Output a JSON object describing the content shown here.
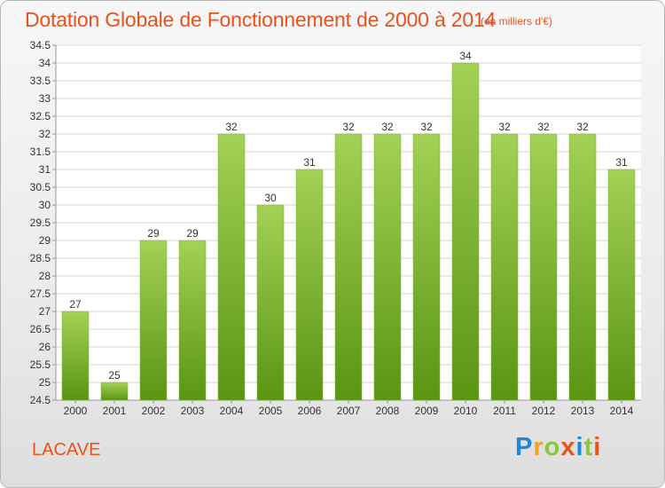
{
  "title": "Dotation Globale de Fonctionnement de 2000 à 2014",
  "unit_note": "(en milliers d'€)",
  "commune": "LACAVE",
  "brand": {
    "letters": [
      "P",
      "r",
      "o",
      "x",
      "i",
      "t",
      "i"
    ],
    "colors": [
      "#1e88d8",
      "#f2a51c",
      "#8cc63f",
      "#e8531d",
      "#1e88d8",
      "#8cc63f",
      "#e8531d"
    ]
  },
  "colors": {
    "title": "#e8531d",
    "bar_top": "#a3d155",
    "bar_bottom": "#5a9512",
    "grid": "#d6d6d6",
    "axis": "#999999"
  },
  "chart_data": {
    "type": "bar",
    "categories": [
      "2000",
      "2001",
      "2002",
      "2003",
      "2004",
      "2005",
      "2006",
      "2007",
      "2008",
      "2009",
      "2010",
      "2011",
      "2012",
      "2013",
      "2014"
    ],
    "values": [
      27,
      25,
      29,
      29,
      32,
      30,
      31,
      32,
      32,
      32,
      34,
      32,
      32,
      32,
      31
    ],
    "data_labels": [
      "27",
      "25",
      "29",
      "29",
      "32",
      "30",
      "31",
      "32",
      "32",
      "32",
      "34",
      "32",
      "32",
      "32",
      "31"
    ],
    "ylim": [
      24.5,
      34.5
    ],
    "yticks": [
      24.5,
      25,
      25.5,
      26,
      26.5,
      27,
      27.5,
      28,
      28.5,
      29,
      29.5,
      30,
      30.5,
      31,
      31.5,
      32,
      32.5,
      33,
      33.5,
      34,
      34.5
    ],
    "ytick_labels": [
      "24.5",
      "25",
      "25.5",
      "26",
      "26.5",
      "27",
      "27.5",
      "28",
      "28.5",
      "29",
      "29.5",
      "30",
      "30.5",
      "31",
      "31.5",
      "32",
      "32.5",
      "33",
      "33.5",
      "34",
      "34.5"
    ],
    "grid": true,
    "legend": "none"
  }
}
